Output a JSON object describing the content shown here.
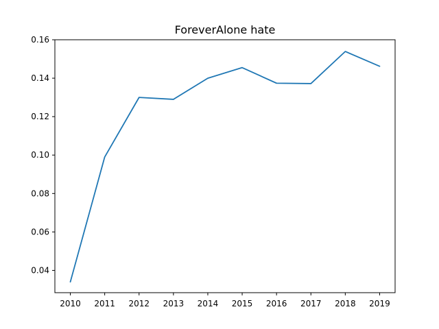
{
  "chart_data": {
    "type": "line",
    "title": "ForeverAlone hate",
    "xlabel": "",
    "ylabel": "",
    "x": [
      2010,
      2011,
      2012,
      2013,
      2014,
      2015,
      2016,
      2017,
      2018,
      2019
    ],
    "x_tick_labels": [
      "2010",
      "2011",
      "2012",
      "2013",
      "2014",
      "2015",
      "2016",
      "2017",
      "2018",
      "2019"
    ],
    "series": [
      {
        "values": [
          0.034,
          0.099,
          0.13,
          0.129,
          0.14,
          0.1455,
          0.1374,
          0.1372,
          0.1539,
          0.1462
        ],
        "color": "#1f77b4"
      }
    ],
    "xlim": [
      2009.55,
      2019.45
    ],
    "ylim": [
      0.0284,
      0.16
    ],
    "y_ticks": [
      0.04,
      0.06,
      0.08,
      0.1,
      0.12,
      0.14,
      0.16
    ],
    "y_tick_labels": [
      "0.04",
      "0.06",
      "0.08",
      "0.10",
      "0.12",
      "0.14",
      "0.16"
    ],
    "grid": false,
    "legend": "none"
  }
}
